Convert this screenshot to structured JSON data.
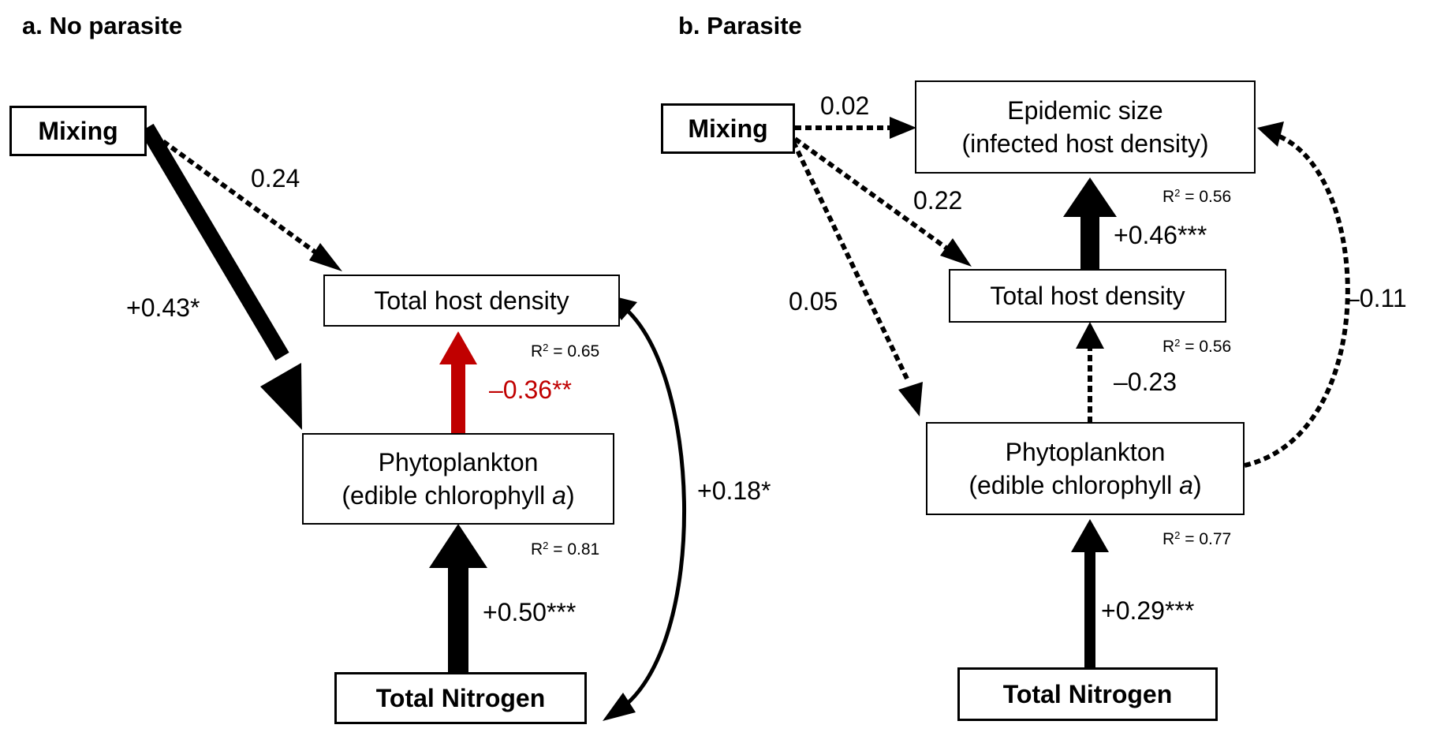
{
  "panel_a": {
    "title": "a. No parasite",
    "nodes": {
      "mixing": "Mixing",
      "total_host_density": "Total host density",
      "phytoplankton_line1": "Phytoplankton",
      "phytoplankton_line2": "(edible chlorophyll ",
      "phytoplankton_var": "a",
      "phytoplankton_close": ")",
      "total_nitrogen": "Total Nitrogen"
    },
    "paths": {
      "mixing_to_host": "0.24",
      "mixing_to_phyto": "+0.43*",
      "phyto_to_host": "–0.36**",
      "nitrogen_to_phyto": "+0.50***",
      "host_nitrogen_covariance": "+0.18*"
    },
    "r_squared": {
      "label": "R",
      "exponent": "2",
      "host": " = 0.65",
      "phyto": " = 0.81"
    }
  },
  "panel_b": {
    "title": "b. Parasite",
    "nodes": {
      "mixing": "Mixing",
      "epidemic_line1": "Epidemic size",
      "epidemic_line2": "(infected host density)",
      "total_host_density": "Total host density",
      "phytoplankton_line1": "Phytoplankton",
      "phytoplankton_line2": "(edible chlorophyll ",
      "phytoplankton_var": "a",
      "phytoplankton_close": ")",
      "total_nitrogen": "Total Nitrogen"
    },
    "paths": {
      "mixing_to_epidemic": "0.02",
      "mixing_to_host": "0.22",
      "mixing_to_phyto": "0.05",
      "host_to_epidemic": "+0.46***",
      "phyto_to_host": "–0.23",
      "phyto_to_epidemic": "–0.11",
      "nitrogen_to_phyto": "+0.29***"
    },
    "r_squared": {
      "label": "R",
      "exponent": "2",
      "epidemic": " = 0.56",
      "host": " = 0.56",
      "phyto": " = 0.77"
    }
  },
  "colors": {
    "negative_significant": "#c00000",
    "default": "#000000"
  }
}
